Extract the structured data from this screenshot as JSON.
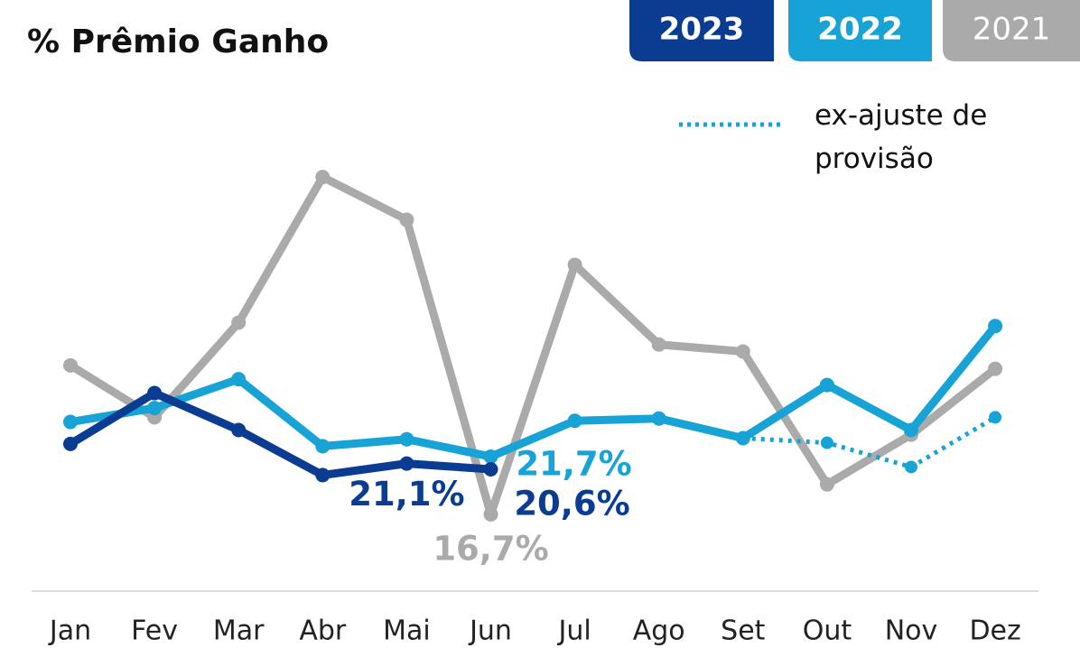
{
  "chart_data": {
    "type": "line",
    "title": "% Prêmio Ganho",
    "categories": [
      "Jan",
      "Fev",
      "Mar",
      "Abr",
      "Mai",
      "Jun",
      "Jul",
      "Ago",
      "Set",
      "Out",
      "Nov",
      "Dez"
    ],
    "ylim": [
      10,
      54
    ],
    "series": [
      {
        "name": "2023",
        "color": "#0a3d91",
        "values": [
          22.8,
          27.2,
          24.0,
          20.1,
          21.1,
          20.6,
          null,
          null,
          null,
          null,
          null,
          null
        ],
        "value_labels": [
          null,
          null,
          null,
          null,
          "21,1%",
          "20,6%",
          null,
          null,
          null,
          null,
          null,
          null
        ]
      },
      {
        "name": "2022",
        "color": "#17a3d6",
        "values": [
          24.7,
          25.9,
          28.4,
          22.6,
          23.2,
          21.7,
          24.8,
          25.0,
          23.3,
          27.9,
          24.0,
          33.0
        ],
        "value_labels": [
          null,
          null,
          null,
          null,
          null,
          "21,7%",
          null,
          null,
          null,
          null,
          null,
          null
        ]
      },
      {
        "name": "ex-ajuste de provisão",
        "color": "#17a3d6",
        "style": "dotted",
        "values": [
          null,
          null,
          null,
          null,
          null,
          null,
          null,
          null,
          23.3,
          22.9,
          20.8,
          25.1
        ]
      },
      {
        "name": "2021",
        "color": "#aaaaaa",
        "values": [
          29.6,
          25.1,
          33.3,
          45.9,
          42.2,
          16.7,
          38.3,
          31.4,
          30.8,
          19.3,
          23.6,
          29.3
        ],
        "value_labels": [
          null,
          null,
          null,
          null,
          null,
          "16,7%",
          null,
          null,
          null,
          null,
          null,
          null
        ]
      }
    ]
  }
}
